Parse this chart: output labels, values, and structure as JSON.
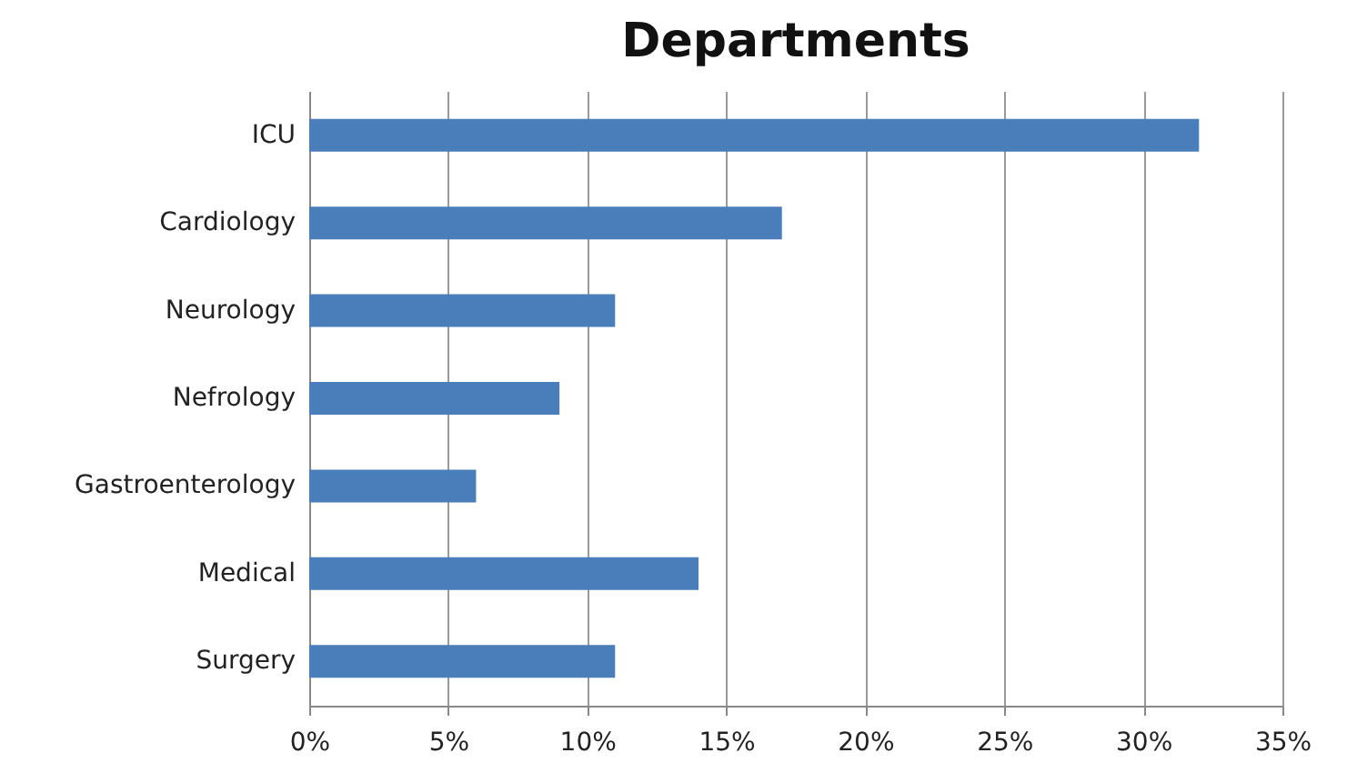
{
  "chart_data": {
    "type": "bar",
    "orientation": "horizontal",
    "title": "Departments",
    "categories": [
      "ICU",
      "Cardiology",
      "Neurology",
      "Nefrology",
      "Gastroenterology",
      "Medical",
      "Surgery"
    ],
    "values": [
      32,
      17,
      11,
      9,
      6,
      14,
      11
    ],
    "color": "#4a7ebb",
    "xlim": [
      0,
      35
    ],
    "xticks": [
      {
        "value": 0,
        "label": "0%"
      },
      {
        "value": 5,
        "label": "5%"
      },
      {
        "value": 10,
        "label": "10%"
      },
      {
        "value": 15,
        "label": "15%"
      },
      {
        "value": 20,
        "label": "20%"
      },
      {
        "value": 25,
        "label": "25%"
      },
      {
        "value": 30,
        "label": "30%"
      },
      {
        "value": 35,
        "label": "35%"
      }
    ],
    "grid": "x"
  }
}
